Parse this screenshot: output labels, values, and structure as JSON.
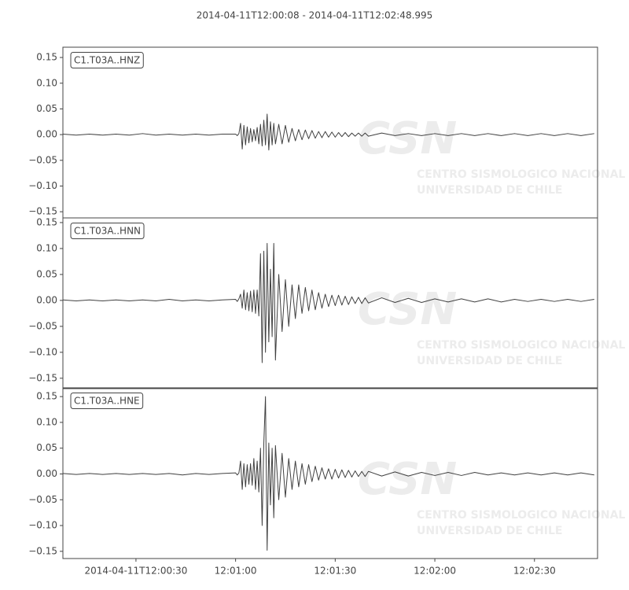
{
  "title": "2014-04-11T12:00:08  -  2014-04-11T12:02:48.995",
  "chart_data": [
    {
      "type": "line",
      "label": "C1.T03A..HNZ",
      "color": "#404040",
      "watermark": [
        "CSN",
        "CENTRO SISMOLOGICO NACIONAL",
        "UNIVERSIDAD DE CHILE"
      ],
      "xlim": [
        "2014-04-11T12:00:08",
        "2014-04-11T12:02:48.995"
      ],
      "ylim": [
        -0.162,
        0.17
      ],
      "yticks": [
        {
          "value": -0.15,
          "label": "−0.15"
        },
        {
          "value": -0.1,
          "label": "−0.10"
        },
        {
          "value": -0.05,
          "label": "−0.05"
        },
        {
          "value": 0,
          "label": "0.00"
        },
        {
          "value": 0.05,
          "label": "0.05"
        },
        {
          "value": 0.1,
          "label": "0.10"
        },
        {
          "value": 0.15,
          "label": "0.15"
        }
      ],
      "x": [
        "2014-04-11T12:00:08",
        "2014-04-11T12:00:12",
        "2014-04-11T12:00:16",
        "2014-04-11T12:00:20",
        "2014-04-11T12:00:24",
        "2014-04-11T12:00:28",
        "2014-04-11T12:00:32",
        "2014-04-11T12:00:36",
        "2014-04-11T12:00:40",
        "2014-04-11T12:00:44",
        "2014-04-11T12:00:48",
        "2014-04-11T12:00:52",
        "2014-04-11T12:00:56",
        "2014-04-11T12:01:00",
        "2014-04-11T12:01:00.5",
        "2014-04-11T12:01:01",
        "2014-04-11T12:01:01.5",
        "2014-04-11T12:01:02",
        "2014-04-11T12:01:02.5",
        "2014-04-11T12:01:03",
        "2014-04-11T12:01:03.5",
        "2014-04-11T12:01:04",
        "2014-04-11T12:01:04.5",
        "2014-04-11T12:01:05",
        "2014-04-11T12:01:05.5",
        "2014-04-11T12:01:06",
        "2014-04-11T12:01:06.5",
        "2014-04-11T12:01:07",
        "2014-04-11T12:01:07.5",
        "2014-04-11T12:01:08",
        "2014-04-11T12:01:08.5",
        "2014-04-11T12:01:09",
        "2014-04-11T12:01:09.5",
        "2014-04-11T12:01:10",
        "2014-04-11T12:01:10.5",
        "2014-04-11T12:01:11",
        "2014-04-11T12:01:11.5",
        "2014-04-11T12:01:12",
        "2014-04-11T12:01:13",
        "2014-04-11T12:01:14",
        "2014-04-11T12:01:15",
        "2014-04-11T12:01:16",
        "2014-04-11T12:01:17",
        "2014-04-11T12:01:18",
        "2014-04-11T12:01:19",
        "2014-04-11T12:01:20",
        "2014-04-11T12:01:21",
        "2014-04-11T12:01:22",
        "2014-04-11T12:01:23",
        "2014-04-11T12:01:24",
        "2014-04-11T12:01:25",
        "2014-04-11T12:01:26",
        "2014-04-11T12:01:27",
        "2014-04-11T12:01:28",
        "2014-04-11T12:01:29",
        "2014-04-11T12:01:30",
        "2014-04-11T12:01:31",
        "2014-04-11T12:01:32",
        "2014-04-11T12:01:33",
        "2014-04-11T12:01:34",
        "2014-04-11T12:01:35",
        "2014-04-11T12:01:36",
        "2014-04-11T12:01:37",
        "2014-04-11T12:01:38",
        "2014-04-11T12:01:39",
        "2014-04-11T12:01:40",
        "2014-04-11T12:01:44",
        "2014-04-11T12:01:48",
        "2014-04-11T12:01:52",
        "2014-04-11T12:01:56",
        "2014-04-11T12:02:00",
        "2014-04-11T12:02:04",
        "2014-04-11T12:02:08",
        "2014-04-11T12:02:12",
        "2014-04-11T12:02:16",
        "2014-04-11T12:02:20",
        "2014-04-11T12:02:24",
        "2014-04-11T12:02:28",
        "2014-04-11T12:02:32",
        "2014-04-11T12:02:36",
        "2014-04-11T12:02:40",
        "2014-04-11T12:02:44",
        "2014-04-11T12:02:48"
      ],
      "values": [
        0.001,
        -0.001,
        0.001,
        -0.001,
        0.001,
        -0.001,
        0.002,
        -0.001,
        0.001,
        -0.001,
        0.001,
        -0.001,
        0.001,
        0.001,
        -0.002,
        0.002,
        0.022,
        -0.028,
        0.018,
        -0.02,
        0.015,
        -0.016,
        0.012,
        -0.014,
        0.01,
        -0.012,
        0.014,
        -0.018,
        0.02,
        -0.022,
        0.028,
        -0.02,
        0.04,
        -0.03,
        0.025,
        -0.02,
        0.022,
        -0.018,
        0.02,
        -0.018,
        0.018,
        -0.015,
        0.012,
        -0.012,
        0.01,
        -0.01,
        0.009,
        -0.008,
        0.008,
        -0.007,
        0.006,
        -0.006,
        0.006,
        -0.005,
        0.005,
        -0.005,
        0.004,
        -0.004,
        0.004,
        -0.004,
        0.003,
        -0.003,
        0.003,
        -0.003,
        0.003,
        -0.003,
        0.003,
        -0.002,
        0.002,
        -0.002,
        0.002,
        -0.002,
        0.002,
        -0.002,
        0.002,
        -0.002,
        0.002,
        -0.002,
        0.002,
        -0.002,
        0.002,
        -0.002,
        0.002
      ]
    },
    {
      "type": "line",
      "label": "C1.T03A..HNN",
      "color": "#404040",
      "watermark": [
        "CSN",
        "CENTRO SISMOLOGICO NACIONAL",
        "UNIVERSIDAD DE CHILE"
      ],
      "xlim": [
        "2014-04-11T12:00:08",
        "2014-04-11T12:02:48.995"
      ],
      "ylim": [
        -0.17,
        0.159
      ],
      "yticks": [
        {
          "value": -0.15,
          "label": "−0.15"
        },
        {
          "value": -0.1,
          "label": "−0.10"
        },
        {
          "value": -0.05,
          "label": "−0.05"
        },
        {
          "value": 0,
          "label": "0.00"
        },
        {
          "value": 0.05,
          "label": "0.05"
        },
        {
          "value": 0.1,
          "label": "0.10"
        },
        {
          "value": 0.15,
          "label": "0.15"
        }
      ],
      "x": [
        "2014-04-11T12:00:08",
        "2014-04-11T12:00:12",
        "2014-04-11T12:00:16",
        "2014-04-11T12:00:20",
        "2014-04-11T12:00:24",
        "2014-04-11T12:00:28",
        "2014-04-11T12:00:32",
        "2014-04-11T12:00:36",
        "2014-04-11T12:00:40",
        "2014-04-11T12:00:44",
        "2014-04-11T12:00:48",
        "2014-04-11T12:00:52",
        "2014-04-11T12:00:56",
        "2014-04-11T12:01:00",
        "2014-04-11T12:01:00.5",
        "2014-04-11T12:01:01",
        "2014-04-11T12:01:01.5",
        "2014-04-11T12:01:02",
        "2014-04-11T12:01:02.5",
        "2014-04-11T12:01:03",
        "2014-04-11T12:01:03.5",
        "2014-04-11T12:01:04",
        "2014-04-11T12:01:04.5",
        "2014-04-11T12:01:05",
        "2014-04-11T12:01:05.5",
        "2014-04-11T12:01:06",
        "2014-04-11T12:01:06.5",
        "2014-04-11T12:01:07",
        "2014-04-11T12:01:07.5",
        "2014-04-11T12:01:08",
        "2014-04-11T12:01:08.5",
        "2014-04-11T12:01:09",
        "2014-04-11T12:01:09.5",
        "2014-04-11T12:01:10",
        "2014-04-11T12:01:10.5",
        "2014-04-11T12:01:11",
        "2014-04-11T12:01:11.5",
        "2014-04-11T12:01:12",
        "2014-04-11T12:01:13",
        "2014-04-11T12:01:14",
        "2014-04-11T12:01:15",
        "2014-04-11T12:01:16",
        "2014-04-11T12:01:17",
        "2014-04-11T12:01:18",
        "2014-04-11T12:01:19",
        "2014-04-11T12:01:20",
        "2014-04-11T12:01:21",
        "2014-04-11T12:01:22",
        "2014-04-11T12:01:23",
        "2014-04-11T12:01:24",
        "2014-04-11T12:01:25",
        "2014-04-11T12:01:26",
        "2014-04-11T12:01:27",
        "2014-04-11T12:01:28",
        "2014-04-11T12:01:29",
        "2014-04-11T12:01:30",
        "2014-04-11T12:01:31",
        "2014-04-11T12:01:32",
        "2014-04-11T12:01:33",
        "2014-04-11T12:01:34",
        "2014-04-11T12:01:35",
        "2014-04-11T12:01:36",
        "2014-04-11T12:01:37",
        "2014-04-11T12:01:38",
        "2014-04-11T12:01:39",
        "2014-04-11T12:01:40",
        "2014-04-11T12:01:44",
        "2014-04-11T12:01:48",
        "2014-04-11T12:01:52",
        "2014-04-11T12:01:56",
        "2014-04-11T12:02:00",
        "2014-04-11T12:02:04",
        "2014-04-11T12:02:08",
        "2014-04-11T12:02:12",
        "2014-04-11T12:02:16",
        "2014-04-11T12:02:20",
        "2014-04-11T12:02:24",
        "2014-04-11T12:02:28",
        "2014-04-11T12:02:32",
        "2014-04-11T12:02:36",
        "2014-04-11T12:02:40",
        "2014-04-11T12:02:44",
        "2014-04-11T12:02:48"
      ],
      "values": [
        0.001,
        -0.001,
        0.001,
        -0.001,
        0.001,
        -0.001,
        0.001,
        -0.001,
        0.002,
        -0.001,
        0.001,
        -0.001,
        0.001,
        0.002,
        -0.002,
        0.003,
        0.012,
        -0.015,
        0.02,
        -0.018,
        0.015,
        -0.02,
        0.018,
        -0.022,
        0.02,
        -0.025,
        0.02,
        -0.03,
        0.09,
        -0.12,
        0.095,
        -0.1,
        0.11,
        -0.08,
        0.06,
        -0.07,
        0.11,
        -0.115,
        0.05,
        -0.06,
        0.04,
        -0.05,
        0.03,
        -0.035,
        0.03,
        -0.025,
        0.025,
        -0.02,
        0.02,
        -0.018,
        0.015,
        -0.015,
        0.012,
        -0.012,
        0.01,
        -0.01,
        0.01,
        -0.009,
        0.008,
        -0.008,
        0.007,
        -0.006,
        0.006,
        -0.006,
        0.005,
        -0.005,
        0.005,
        -0.004,
        0.004,
        -0.004,
        0.003,
        -0.003,
        0.003,
        -0.003,
        0.003,
        -0.003,
        0.002,
        -0.002,
        0.002,
        -0.002,
        0.002,
        -0.002,
        0.002
      ]
    },
    {
      "type": "line",
      "label": "C1.T03A..HNE",
      "color": "#404040",
      "watermark": [
        "CSN",
        "CENTRO SISMOLOGICO NACIONAL",
        "UNIVERSIDAD DE CHILE"
      ],
      "xlim": [
        "2014-04-11T12:00:08",
        "2014-04-11T12:02:48.995"
      ],
      "ylim": [
        -0.164,
        0.167
      ],
      "yticks": [
        {
          "value": -0.15,
          "label": "−0.15"
        },
        {
          "value": -0.1,
          "label": "−0.10"
        },
        {
          "value": -0.05,
          "label": "−0.05"
        },
        {
          "value": 0,
          "label": "0.00"
        },
        {
          "value": 0.05,
          "label": "0.05"
        },
        {
          "value": 0.1,
          "label": "0.10"
        },
        {
          "value": 0.15,
          "label": "0.15"
        }
      ],
      "xticks": [
        "2014-04-11T12:00:30",
        {
          "value": "2014-04-11T12:01:00",
          "label": "12:01:00"
        },
        {
          "value": "2014-04-11T12:01:30",
          "label": "12:01:30"
        },
        {
          "value": "2014-04-11T12:02:00",
          "label": "12:02:00"
        },
        {
          "value": "2014-04-11T12:02:30",
          "label": "12:02:30"
        }
      ],
      "x": [
        "2014-04-11T12:00:08",
        "2014-04-11T12:00:12",
        "2014-04-11T12:00:16",
        "2014-04-11T12:00:20",
        "2014-04-11T12:00:24",
        "2014-04-11T12:00:28",
        "2014-04-11T12:00:32",
        "2014-04-11T12:00:36",
        "2014-04-11T12:00:40",
        "2014-04-11T12:00:44",
        "2014-04-11T12:00:48",
        "2014-04-11T12:00:52",
        "2014-04-11T12:00:56",
        "2014-04-11T12:01:00",
        "2014-04-11T12:01:00.5",
        "2014-04-11T12:01:01",
        "2014-04-11T12:01:01.5",
        "2014-04-11T12:01:02",
        "2014-04-11T12:01:02.5",
        "2014-04-11T12:01:03",
        "2014-04-11T12:01:03.5",
        "2014-04-11T12:01:04",
        "2014-04-11T12:01:04.5",
        "2014-04-11T12:01:05",
        "2014-04-11T12:01:05.5",
        "2014-04-11T12:01:06",
        "2014-04-11T12:01:06.5",
        "2014-04-11T12:01:07",
        "2014-04-11T12:01:07.5",
        "2014-04-11T12:01:08",
        "2014-04-11T12:01:08.5",
        "2014-04-11T12:01:09",
        "2014-04-11T12:01:09.5",
        "2014-04-11T12:01:10",
        "2014-04-11T12:01:10.5",
        "2014-04-11T12:01:11",
        "2014-04-11T12:01:11.5",
        "2014-04-11T12:01:12",
        "2014-04-11T12:01:13",
        "2014-04-11T12:01:14",
        "2014-04-11T12:01:15",
        "2014-04-11T12:01:16",
        "2014-04-11T12:01:17",
        "2014-04-11T12:01:18",
        "2014-04-11T12:01:19",
        "2014-04-11T12:01:20",
        "2014-04-11T12:01:21",
        "2014-04-11T12:01:22",
        "2014-04-11T12:01:23",
        "2014-04-11T12:01:24",
        "2014-04-11T12:01:25",
        "2014-04-11T12:01:26",
        "2014-04-11T12:01:27",
        "2014-04-11T12:01:28",
        "2014-04-11T12:01:29",
        "2014-04-11T12:01:30",
        "2014-04-11T12:01:31",
        "2014-04-11T12:01:32",
        "2014-04-11T12:01:33",
        "2014-04-11T12:01:34",
        "2014-04-11T12:01:35",
        "2014-04-11T12:01:36",
        "2014-04-11T12:01:37",
        "2014-04-11T12:01:38",
        "2014-04-11T12:01:39",
        "2014-04-11T12:01:40",
        "2014-04-11T12:01:44",
        "2014-04-11T12:01:48",
        "2014-04-11T12:01:52",
        "2014-04-11T12:01:56",
        "2014-04-11T12:02:00",
        "2014-04-11T12:02:04",
        "2014-04-11T12:02:08",
        "2014-04-11T12:02:12",
        "2014-04-11T12:02:16",
        "2014-04-11T12:02:20",
        "2014-04-11T12:02:24",
        "2014-04-11T12:02:28",
        "2014-04-11T12:02:32",
        "2014-04-11T12:02:36",
        "2014-04-11T12:02:40",
        "2014-04-11T12:02:44",
        "2014-04-11T12:02:48"
      ],
      "values": [
        0.001,
        -0.001,
        0.001,
        -0.001,
        0.001,
        -0.001,
        0.001,
        -0.001,
        0.001,
        -0.002,
        0.001,
        -0.001,
        0.001,
        0.002,
        -0.002,
        0.002,
        0.025,
        -0.03,
        0.02,
        -0.025,
        0.018,
        -0.02,
        0.02,
        -0.022,
        0.03,
        -0.03,
        0.025,
        -0.035,
        0.05,
        -0.1,
        0.06,
        0.15,
        -0.148,
        0.06,
        -0.06,
        0.05,
        -0.085,
        0.055,
        -0.05,
        0.04,
        -0.045,
        0.03,
        -0.03,
        0.025,
        -0.025,
        0.02,
        -0.02,
        0.018,
        -0.015,
        0.015,
        -0.012,
        0.012,
        -0.01,
        0.01,
        -0.01,
        0.009,
        -0.008,
        0.008,
        -0.007,
        0.007,
        -0.006,
        0.006,
        -0.005,
        0.005,
        -0.005,
        0.005,
        -0.004,
        0.004,
        -0.004,
        0.003,
        -0.003,
        0.003,
        -0.003,
        0.003,
        -0.002,
        0.002,
        -0.002,
        0.002,
        -0.002,
        0.002,
        -0.002,
        0.002,
        -0.002
      ]
    }
  ]
}
